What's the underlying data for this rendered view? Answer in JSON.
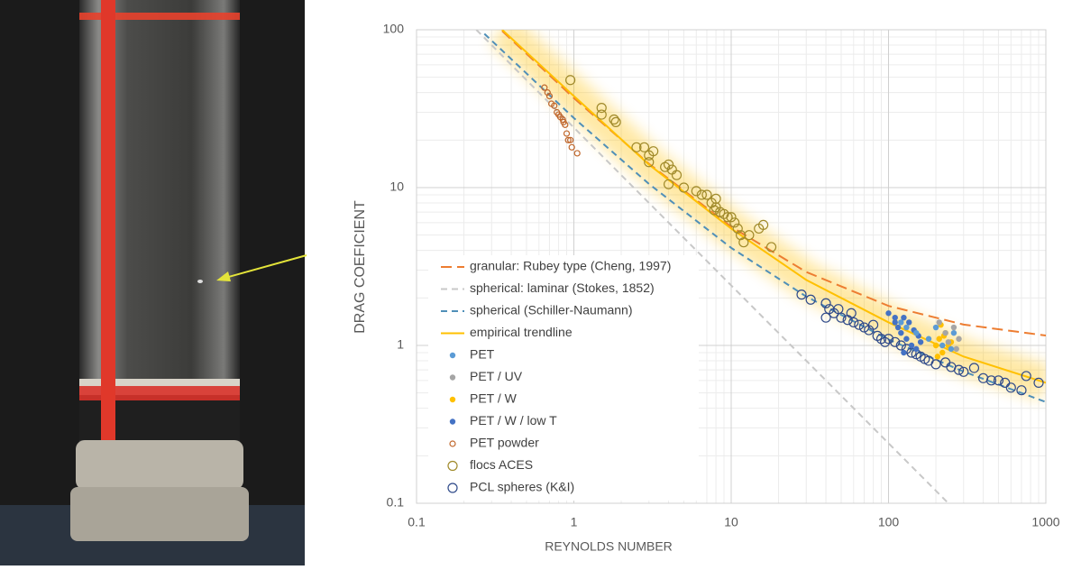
{
  "chart_data": {
    "type": "scatter",
    "x_label": "REYNOLDS NUMBER",
    "y_label": "DRAG COEFICIENT",
    "x_log": true,
    "y_log": true,
    "grid": true,
    "legend": "lower left",
    "xlim": [
      0.1,
      1000
    ],
    "xticks": [
      0.1,
      1,
      10,
      100,
      1000
    ],
    "ylim": [
      0.1,
      100
    ],
    "yticks": [
      0.1,
      1,
      10,
      100
    ],
    "series": [
      {
        "name": "granular: Rubey type (Cheng, 1997)",
        "kind": "line",
        "style": "long-dash",
        "color": "#ed7d31",
        "x": [
          0.35,
          1,
          3,
          10,
          30,
          100,
          300,
          1000
        ],
        "values": [
          98.3,
          36.9,
          14.15,
          5.65,
          2.92,
          1.78,
          1.356,
          1.155
        ]
      },
      {
        "name": "spherical: laminar (Stokes, 1852)",
        "kind": "line",
        "style": "dash",
        "color": "#c8c8c8",
        "x": [
          0.24,
          1,
          10,
          100,
          240
        ],
        "values": [
          100,
          24,
          2.4,
          0.24,
          0.1
        ]
      },
      {
        "name": "spherical (Schiller-Naumann)",
        "kind": "line",
        "style": "dash",
        "color": "#4f8fb8",
        "x": [
          0.27,
          1,
          3,
          10,
          30,
          100,
          300,
          1000
        ],
        "values": [
          94.3,
          27.6,
          10.55,
          4.15,
          2.04,
          1.09,
          0.683,
          0.438
        ]
      },
      {
        "name": "empirical trendline",
        "kind": "line",
        "style": "solid",
        "color": "#ffc000",
        "x": [
          0.35,
          1,
          3,
          10,
          30,
          100,
          300,
          1000
        ],
        "values": [
          100,
          38,
          14,
          5.5,
          2.6,
          1.4,
          0.85,
          0.58
        ]
      },
      {
        "name": "PET",
        "kind": "points",
        "marker": "filled",
        "color": "#5b9bd5",
        "x": [
          130,
          150,
          180,
          220,
          250,
          260,
          120,
          200
        ],
        "values": [
          1.3,
          1.2,
          1.1,
          1.0,
          0.95,
          1.2,
          1.4,
          1.3
        ]
      },
      {
        "name": "PET / UV",
        "kind": "points",
        "marker": "filled",
        "color": "#a5a5a5",
        "x": [
          230,
          260,
          280,
          270,
          210,
          240
        ],
        "values": [
          1.2,
          1.3,
          1.1,
          0.95,
          1.4,
          1.05
        ]
      },
      {
        "name": "PET / W",
        "kind": "points",
        "marker": "filled",
        "color": "#ffc000",
        "x": [
          200,
          210,
          220,
          230,
          240,
          215,
          250,
          205,
          225
        ],
        "values": [
          1.0,
          1.1,
          0.9,
          1.2,
          1.0,
          1.35,
          1.05,
          0.85,
          1.15
        ]
      },
      {
        "name": "PET / W / low T",
        "kind": "points",
        "marker": "filled",
        "color": "#4472c4",
        "x": [
          100,
          110,
          115,
          120,
          125,
          130,
          135,
          140,
          145,
          150,
          125,
          155,
          110,
          160
        ],
        "values": [
          1.6,
          1.4,
          1.3,
          1.2,
          1.5,
          1.1,
          1.4,
          1.0,
          1.25,
          0.95,
          0.9,
          1.15,
          1.5,
          1.05
        ]
      },
      {
        "name": "PET powder",
        "kind": "points",
        "marker": "open-small",
        "color": "#c0672b",
        "x": [
          0.65,
          0.68,
          0.7,
          0.75,
          0.78,
          0.8,
          0.82,
          0.85,
          0.88,
          0.9,
          0.92,
          0.95,
          0.97,
          1.05,
          0.72,
          0.86
        ],
        "values": [
          43,
          40,
          38,
          33,
          30,
          29,
          28,
          27,
          25,
          22,
          20,
          20,
          18,
          16.5,
          34,
          26
        ]
      },
      {
        "name": "flocs ACES",
        "kind": "points",
        "marker": "open",
        "color": "#a08a2a",
        "x": [
          0.95,
          1.5,
          1.5,
          1.8,
          1.85,
          2.5,
          2.8,
          3,
          3.2,
          3,
          3.8,
          4,
          4.2,
          4.5,
          4,
          5,
          6,
          6.5,
          7,
          7.5,
          8,
          8,
          8.5,
          9,
          9.5,
          10,
          10.5,
          11,
          11.5,
          12,
          13,
          15,
          16,
          18,
          7.8
        ],
        "values": [
          48,
          32,
          29,
          27,
          26,
          18,
          18,
          16,
          17,
          14.5,
          13.5,
          14,
          13,
          12,
          10.5,
          10,
          9.5,
          9,
          9,
          8,
          8.5,
          7.5,
          7,
          6.8,
          6.5,
          6.5,
          6,
          5.5,
          5,
          4.5,
          5,
          5.5,
          5.8,
          4.2,
          7.2
        ]
      },
      {
        "name": "PCL spheres (K&I)",
        "kind": "points",
        "marker": "open",
        "color": "#2f4a8a",
        "x": [
          28,
          32,
          40,
          42,
          45,
          48,
          50,
          55,
          58,
          60,
          65,
          70,
          75,
          80,
          85,
          90,
          95,
          100,
          110,
          120,
          130,
          140,
          150,
          160,
          170,
          180,
          200,
          230,
          250,
          280,
          300,
          350,
          400,
          450,
          500,
          550,
          600,
          700,
          750,
          900,
          40
        ],
        "values": [
          2.1,
          1.95,
          1.85,
          1.7,
          1.6,
          1.7,
          1.5,
          1.45,
          1.6,
          1.4,
          1.35,
          1.3,
          1.25,
          1.35,
          1.15,
          1.1,
          1.05,
          1.1,
          1.05,
          1.0,
          0.95,
          0.9,
          0.88,
          0.85,
          0.82,
          0.8,
          0.76,
          0.78,
          0.73,
          0.7,
          0.68,
          0.72,
          0.62,
          0.6,
          0.6,
          0.58,
          0.54,
          0.52,
          0.64,
          0.58,
          1.5
        ]
      }
    ]
  }
}
